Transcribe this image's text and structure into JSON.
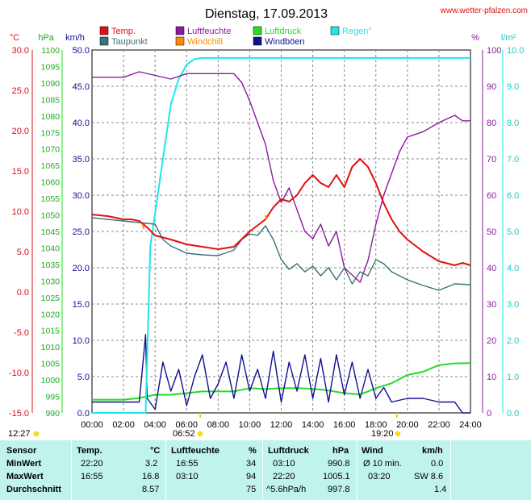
{
  "header": {
    "title": "Dienstag, 17.09.2013",
    "site": "www.wetter-pfalzen.com"
  },
  "axis_units": {
    "temp": "°C",
    "pressure": "hPa",
    "wind": "km/h",
    "humidity": "%",
    "rain": "l/m²"
  },
  "legend": [
    {
      "label": "Temp.",
      "color": "#e01010"
    },
    {
      "label": "Taupunkt",
      "color": "#3a7373"
    },
    {
      "label": "Luftfeuchte",
      "color": "#8b1a9e"
    },
    {
      "label": "Windchill",
      "color": "#ff8a00"
    },
    {
      "label": "Luftdruck",
      "color": "#22dd22"
    },
    {
      "label": "Windböen",
      "color": "#101090"
    },
    {
      "label": "Regen°",
      "color": "#20e6e6"
    }
  ],
  "markers": {
    "start_time": "12:27",
    "sunrise": "06:52",
    "sunset": "19:20"
  },
  "chart_data": {
    "type": "line",
    "x_axis": {
      "ticks": [
        "00:00",
        "02:00",
        "04:00",
        "06:00",
        "08:00",
        "10:00",
        "12:00",
        "14:00",
        "16:00",
        "18:00",
        "20:00",
        "22:00",
        "24:00"
      ],
      "range_hours": [
        0,
        24
      ]
    },
    "y_axes": {
      "temp": {
        "range": [
          -15,
          30
        ],
        "ticks": [
          "30.0",
          "25.0",
          "20.0",
          "15.0",
          "10.0",
          "5.0",
          "0.0",
          "-5.0",
          "-10.0",
          "-15.0"
        ]
      },
      "pressure": {
        "range": [
          990,
          1100
        ],
        "ticks": [
          "1100",
          "1095",
          "1090",
          "1085",
          "1080",
          "1075",
          "1070",
          "1065",
          "1060",
          "1055",
          "1050",
          "1045",
          "1040",
          "1035",
          "1030",
          "1025",
          "1020",
          "1015",
          "1010",
          "1005",
          "1000",
          "995",
          "990"
        ]
      },
      "wind": {
        "range": [
          0,
          50
        ],
        "ticks": [
          "50.0",
          "45.0",
          "40.0",
          "35.0",
          "30.0",
          "25.0",
          "20.0",
          "15.0",
          "10.0",
          "5.0",
          "0.0"
        ]
      },
      "humidity": {
        "range": [
          0,
          100
        ],
        "ticks": [
          "100",
          "90",
          "80",
          "70",
          "60",
          "50",
          "40",
          "30",
          "20",
          "10",
          "0"
        ]
      },
      "rain": {
        "range": [
          0,
          10
        ],
        "ticks": [
          "10.0",
          "9.0",
          "8.0",
          "7.0",
          "6.0",
          "5.0",
          "4.0",
          "3.0",
          "2.0",
          "1.0",
          "0.0"
        ]
      }
    },
    "grid": true,
    "series": [
      {
        "name": "Temp.",
        "axis": "temp",
        "color": "#e01010",
        "points": [
          [
            0,
            9.6
          ],
          [
            1,
            9.4
          ],
          [
            2,
            9.0
          ],
          [
            2.5,
            9.0
          ],
          [
            3,
            8.8
          ],
          [
            3.5,
            8.0
          ],
          [
            4,
            7.0
          ],
          [
            5,
            6.5
          ],
          [
            6,
            5.9
          ],
          [
            7,
            5.6
          ],
          [
            8,
            5.3
          ],
          [
            9,
            5.6
          ],
          [
            10,
            7.5
          ],
          [
            11,
            9.0
          ],
          [
            11.5,
            10.5
          ],
          [
            12,
            11.5
          ],
          [
            12.5,
            11.2
          ],
          [
            13,
            12.0
          ],
          [
            13.5,
            13.5
          ],
          [
            14,
            14.5
          ],
          [
            14.5,
            13.5
          ],
          [
            15,
            13.0
          ],
          [
            15.5,
            14.5
          ],
          [
            16,
            13.0
          ],
          [
            16.5,
            15.5
          ],
          [
            17,
            16.5
          ],
          [
            17.5,
            15.5
          ],
          [
            18,
            13.5
          ],
          [
            18.5,
            11.0
          ],
          [
            19,
            9.0
          ],
          [
            19.5,
            7.5
          ],
          [
            20,
            6.5
          ],
          [
            21,
            5.0
          ],
          [
            22,
            3.8
          ],
          [
            23,
            3.3
          ],
          [
            23.5,
            3.6
          ],
          [
            24,
            3.3
          ]
        ]
      },
      {
        "name": "Taupunkt",
        "axis": "temp",
        "color": "#3a7373",
        "points": [
          [
            0,
            9.2
          ],
          [
            1,
            9.0
          ],
          [
            2,
            8.8
          ],
          [
            3,
            8.6
          ],
          [
            4,
            8.4
          ],
          [
            4.5,
            6.5
          ],
          [
            5,
            5.7
          ],
          [
            6,
            4.8
          ],
          [
            7,
            4.6
          ],
          [
            8,
            4.5
          ],
          [
            9,
            5.2
          ],
          [
            9.5,
            6.5
          ],
          [
            10,
            7.2
          ],
          [
            10.5,
            7.0
          ],
          [
            11,
            8.2
          ],
          [
            11.5,
            6.5
          ],
          [
            12,
            4.0
          ],
          [
            12.5,
            2.8
          ],
          [
            13,
            3.5
          ],
          [
            13.5,
            2.5
          ],
          [
            14,
            3.2
          ],
          [
            14.5,
            2.0
          ],
          [
            15,
            3.0
          ],
          [
            15.5,
            1.5
          ],
          [
            16,
            3.0
          ],
          [
            16.5,
            1.0
          ],
          [
            17,
            2.5
          ],
          [
            17.5,
            2.0
          ],
          [
            18,
            4.0
          ],
          [
            18.5,
            3.5
          ],
          [
            19,
            2.5
          ],
          [
            20,
            1.5
          ],
          [
            21,
            0.8
          ],
          [
            22,
            0.2
          ],
          [
            23,
            1.0
          ],
          [
            24,
            0.9
          ]
        ]
      },
      {
        "name": "Luftfeuchte",
        "axis": "humidity",
        "color": "#8b1a9e",
        "points": [
          [
            0,
            92.5
          ],
          [
            1,
            92.5
          ],
          [
            2,
            92.5
          ],
          [
            3,
            94.0
          ],
          [
            4,
            93.0
          ],
          [
            5,
            92.0
          ],
          [
            6,
            93.5
          ],
          [
            7,
            93.5
          ],
          [
            8,
            93.5
          ],
          [
            9,
            93.5
          ],
          [
            9.5,
            91.0
          ],
          [
            10,
            86.0
          ],
          [
            10.5,
            80.0
          ],
          [
            11,
            74.0
          ],
          [
            11.5,
            64.0
          ],
          [
            12,
            58.0
          ],
          [
            12.5,
            62.0
          ],
          [
            13,
            56.0
          ],
          [
            13.5,
            50.0
          ],
          [
            14,
            48.0
          ],
          [
            14.5,
            52.0
          ],
          [
            15,
            46.0
          ],
          [
            15.5,
            50.0
          ],
          [
            16,
            40.0
          ],
          [
            16.5,
            38.0
          ],
          [
            17,
            36.0
          ],
          [
            17.5,
            42.0
          ],
          [
            18,
            52.0
          ],
          [
            18.5,
            60.0
          ],
          [
            19,
            66.0
          ],
          [
            19.5,
            72.0
          ],
          [
            20,
            76.0
          ],
          [
            21,
            77.5
          ],
          [
            22,
            80.0
          ],
          [
            23,
            82.0
          ],
          [
            23.5,
            80.5
          ],
          [
            24,
            80.5
          ]
        ]
      },
      {
        "name": "Windchill",
        "axis": "temp",
        "color": "#ff8a00",
        "points": [
          [
            3.2,
            8.4
          ],
          [
            3.3,
            7.8
          ],
          [
            11.0,
            9.5
          ],
          [
            11.1,
            9.0
          ]
        ]
      },
      {
        "name": "Luftdruck",
        "axis": "pressure",
        "color": "#22dd22",
        "points": [
          [
            0,
            994
          ],
          [
            2,
            994
          ],
          [
            3,
            994.5
          ],
          [
            4,
            995.5
          ],
          [
            5,
            995.5
          ],
          [
            6,
            996
          ],
          [
            7,
            996.5
          ],
          [
            8,
            996.5
          ],
          [
            9,
            996.5
          ],
          [
            10,
            997.5
          ],
          [
            11,
            997.2
          ],
          [
            12,
            997.5
          ],
          [
            13,
            997.5
          ],
          [
            14,
            997.3
          ],
          [
            15,
            996.8
          ],
          [
            16,
            996
          ],
          [
            17,
            995.6
          ],
          [
            17.5,
            996.5
          ],
          [
            18,
            997.5
          ],
          [
            19,
            999
          ],
          [
            20,
            1001.5
          ],
          [
            21,
            1002.5
          ],
          [
            22,
            1004.5
          ],
          [
            23,
            1005
          ],
          [
            24,
            1005.1
          ]
        ]
      },
      {
        "name": "Windböen",
        "axis": "wind",
        "color": "#101090",
        "points": [
          [
            0,
            1.5
          ],
          [
            1,
            1.5
          ],
          [
            2,
            1.5
          ],
          [
            3,
            1.5
          ],
          [
            3.3,
            8.5
          ],
          [
            3.4,
            10.8
          ],
          [
            3.5,
            2
          ],
          [
            4,
            0.5
          ],
          [
            4.5,
            7
          ],
          [
            5,
            3
          ],
          [
            5.5,
            6
          ],
          [
            6,
            1
          ],
          [
            6.5,
            5
          ],
          [
            7,
            8
          ],
          [
            7.5,
            2
          ],
          [
            8,
            4
          ],
          [
            8.5,
            7
          ],
          [
            9,
            2
          ],
          [
            9.5,
            8
          ],
          [
            10,
            3
          ],
          [
            10.5,
            6
          ],
          [
            11,
            2
          ],
          [
            11.5,
            8.5
          ],
          [
            12,
            1.5
          ],
          [
            12.5,
            7
          ],
          [
            13,
            3
          ],
          [
            13.5,
            8
          ],
          [
            14,
            2
          ],
          [
            14.5,
            7.5
          ],
          [
            15,
            1.5
          ],
          [
            15.5,
            8
          ],
          [
            16,
            2.5
          ],
          [
            16.5,
            7
          ],
          [
            17,
            2
          ],
          [
            17.5,
            6
          ],
          [
            18,
            2
          ],
          [
            18.5,
            3.5
          ],
          [
            19,
            1.5
          ],
          [
            20,
            2
          ],
          [
            21,
            2
          ],
          [
            22,
            1.5
          ],
          [
            23,
            1.5
          ],
          [
            23.5,
            0
          ],
          [
            24,
            0
          ]
        ]
      },
      {
        "name": "Regen°",
        "axis": "rain",
        "color": "#20e6e6",
        "points": [
          [
            0,
            0
          ],
          [
            3.4,
            0
          ],
          [
            3.7,
            4.6
          ],
          [
            4,
            5.5
          ],
          [
            4.5,
            7.0
          ],
          [
            5,
            8.5
          ],
          [
            5.5,
            9.2
          ],
          [
            6,
            9.6
          ],
          [
            6.5,
            9.75
          ],
          [
            7,
            9.78
          ],
          [
            24,
            9.78
          ]
        ]
      }
    ]
  },
  "stats": {
    "sensor_header": "Sensor",
    "rows": [
      "MinWert",
      "MaxWert",
      "Durchschnitt"
    ],
    "temp": {
      "header": "Temp.",
      "unit": "°C",
      "min_time": "22:20",
      "min": "3.2",
      "max_time": "16:55",
      "max": "16.8",
      "avg": "8.57"
    },
    "humidity": {
      "header": "Luftfeuchte",
      "unit": "%",
      "min_time": "16:55",
      "min": "34",
      "max_time": "03:10",
      "max": "94",
      "avg": "75"
    },
    "pressure": {
      "header": "Luftdruck",
      "unit": "hPa",
      "min_time": "03:10",
      "min": "990.8",
      "max_time": "22:20",
      "max": "1005.1",
      "avg_label": "^5.6hPa/h",
      "avg": "997.8"
    },
    "wind": {
      "header": "Wind",
      "unit": "km/h",
      "min_label": "Ø 10 min.",
      "min": "0.0",
      "max_time": "03:20",
      "max": "SW 8.6",
      "avg": "1.4"
    }
  }
}
